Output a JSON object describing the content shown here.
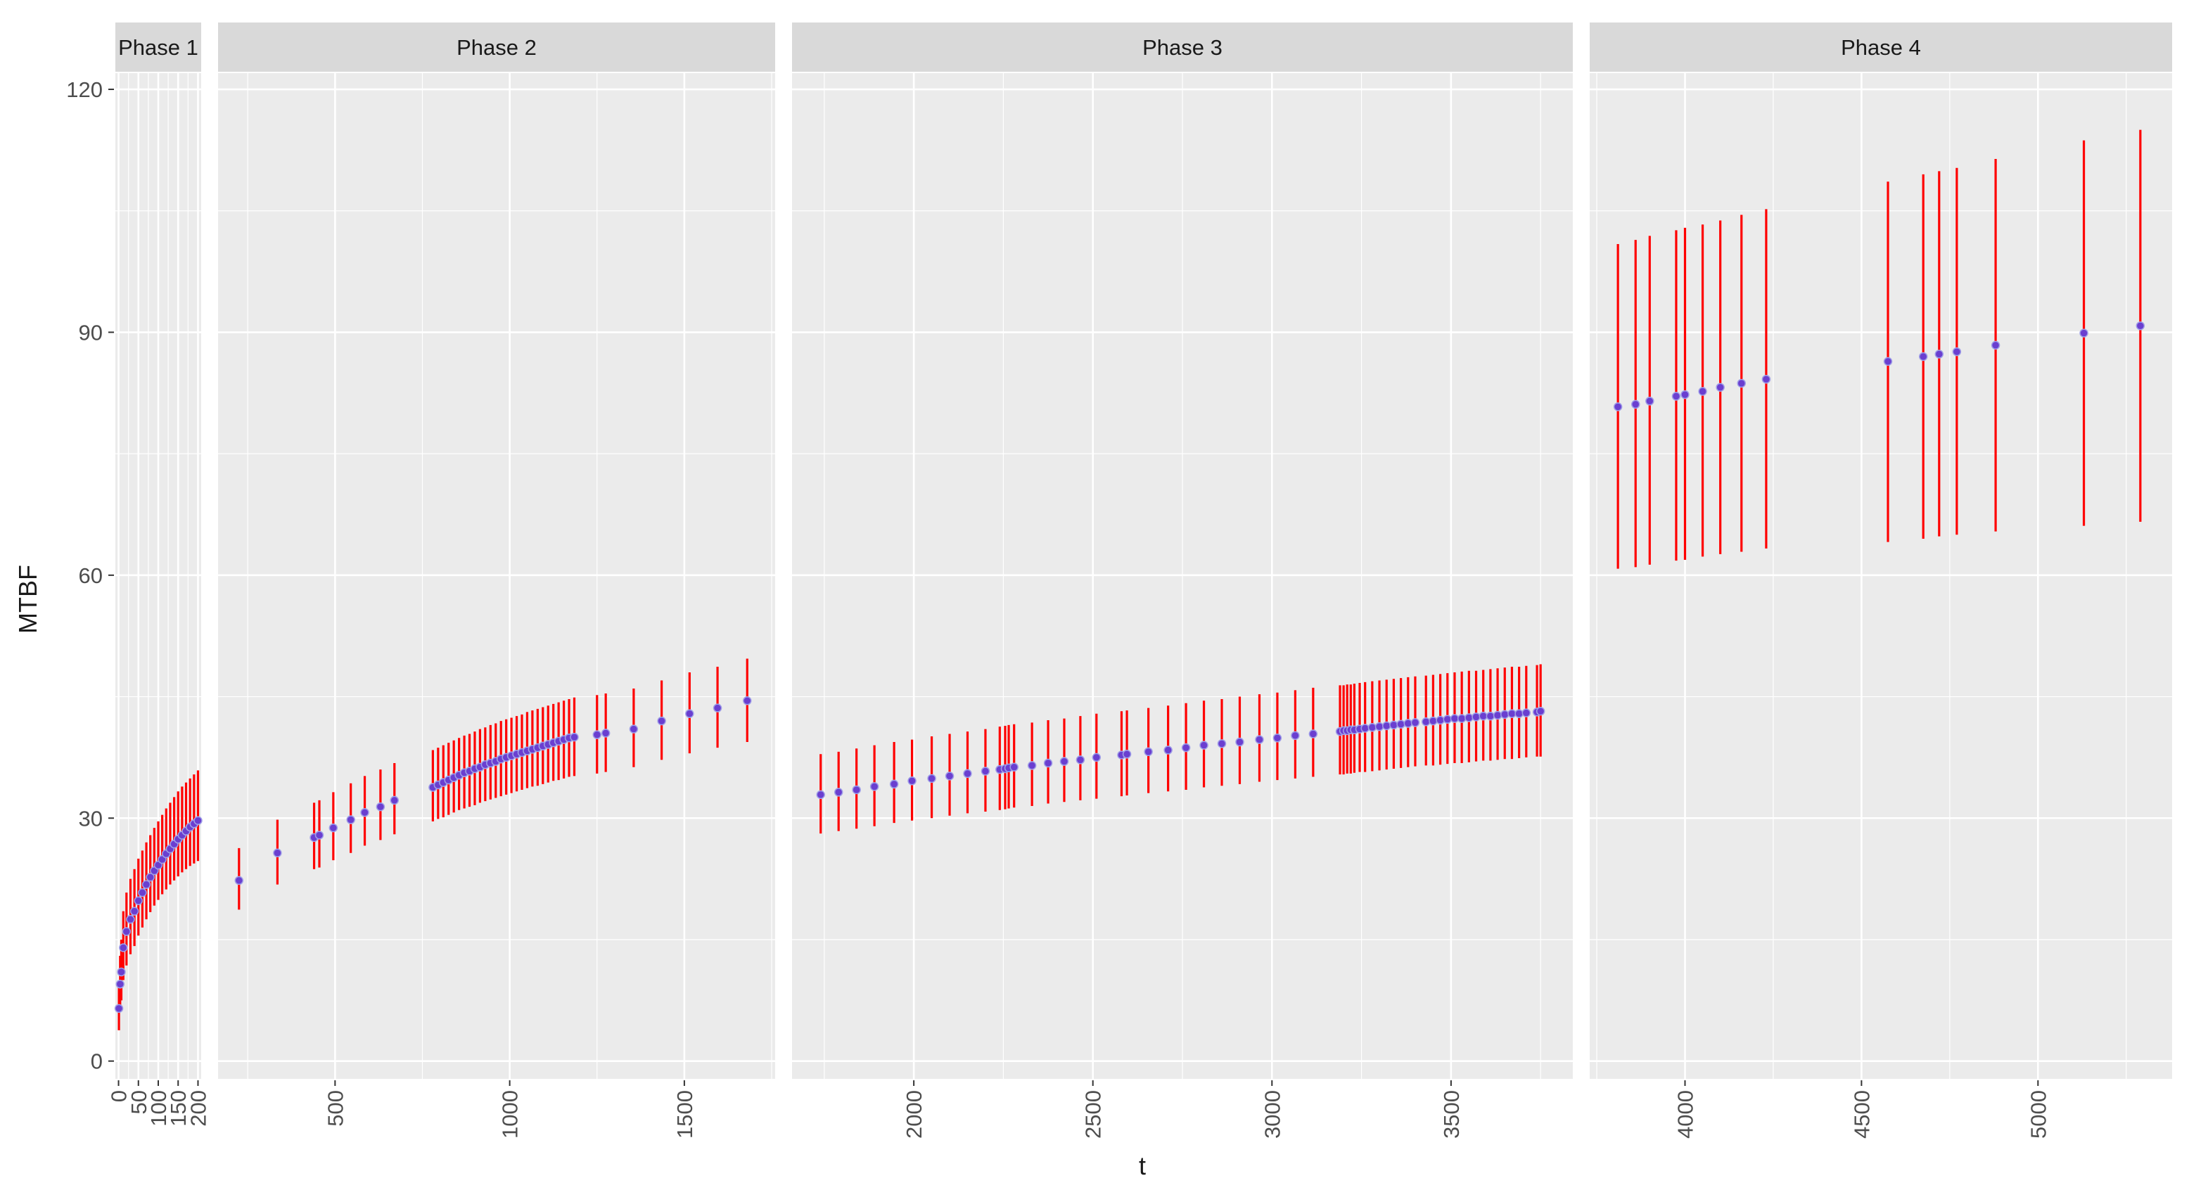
{
  "chart_data": {
    "type": "scatter",
    "subtype": "point-with-vertical-error-bars, faceted",
    "title": "",
    "xlabel": "t",
    "ylabel": "MTBF",
    "ylim": [
      -2.2,
      122
    ],
    "y_ticks": [
      0,
      30,
      60,
      90,
      120
    ],
    "y_tick_labels": [
      "0",
      "30",
      "60",
      "90",
      "120"
    ],
    "colors": {
      "panel_bg": "#ebebeb",
      "strip_bg": "#d9d9d9",
      "grid": "#ffffff",
      "point_fill": "#6a3fd0",
      "point_edge": "#a0a0e8",
      "error_bar": "#ff0000",
      "text": "#4d4d4d",
      "title_text": "#1a1a1a"
    },
    "facets": [
      {
        "name": "Phase 1",
        "xlim": [
          -8,
          208
        ],
        "x_ticks": [
          0,
          50,
          100,
          150,
          200
        ],
        "x_tick_labels": [
          "0",
          "50",
          "100",
          "150",
          "200"
        ],
        "x": [
          1,
          4,
          7,
          12,
          20,
          30,
          40,
          50,
          60,
          70,
          80,
          90,
          100,
          110,
          120,
          130,
          140,
          150,
          160,
          170,
          180,
          190,
          200
        ],
        "y": [
          6.5,
          9.5,
          11,
          14,
          16,
          17.5,
          18.5,
          19.8,
          20.8,
          21.8,
          22.7,
          23.5,
          24.2,
          24.9,
          25.6,
          26.2,
          26.8,
          27.4,
          27.9,
          28.4,
          28.9,
          29.3,
          29.7
        ],
        "lower": [
          3.8,
          6.2,
          7.5,
          10.0,
          11.8,
          13.2,
          14.2,
          15.5,
          16.5,
          17.5,
          18.4,
          19.2,
          19.9,
          20.6,
          21.2,
          21.8,
          22.3,
          22.8,
          23.3,
          23.7,
          24.1,
          24.4,
          24.7
        ],
        "upper": [
          9.5,
          13.0,
          15.0,
          18.5,
          20.8,
          22.5,
          23.7,
          25.0,
          26.0,
          27.0,
          27.9,
          28.8,
          29.6,
          30.4,
          31.2,
          31.9,
          32.6,
          33.3,
          33.9,
          34.4,
          34.9,
          35.4,
          35.9
        ]
      },
      {
        "name": "Phase 2",
        "xlim": [
          165,
          1760
        ],
        "x_ticks": [
          500,
          1000,
          1500
        ],
        "x_tick_labels": [
          "500",
          "1000",
          "1500"
        ],
        "x": [
          225,
          335,
          440,
          455,
          495,
          545,
          585,
          630,
          670,
          780,
          795,
          810,
          825,
          840,
          855,
          870,
          885,
          900,
          915,
          930,
          945,
          960,
          975,
          990,
          1005,
          1020,
          1035,
          1050,
          1065,
          1080,
          1095,
          1110,
          1125,
          1140,
          1155,
          1170,
          1185,
          1250,
          1275,
          1355,
          1435,
          1515,
          1595,
          1680
        ],
        "y": [
          22.3,
          25.7,
          27.6,
          27.9,
          28.8,
          29.8,
          30.7,
          31.4,
          32.2,
          33.8,
          34.1,
          34.4,
          34.7,
          35.0,
          35.3,
          35.6,
          35.8,
          36.1,
          36.3,
          36.6,
          36.8,
          37.0,
          37.3,
          37.5,
          37.7,
          37.9,
          38.1,
          38.3,
          38.5,
          38.7,
          38.9,
          39.1,
          39.3,
          39.5,
          39.7,
          39.9,
          40.0,
          40.3,
          40.5,
          41.0,
          42.0,
          42.9,
          43.6,
          44.5
        ],
        "lower": [
          18.7,
          21.8,
          23.7,
          23.9,
          24.8,
          25.7,
          26.6,
          27.3,
          28.0,
          29.6,
          29.9,
          30.1,
          30.4,
          30.7,
          31.0,
          31.2,
          31.4,
          31.6,
          31.9,
          32.1,
          32.3,
          32.5,
          32.7,
          32.9,
          33.1,
          33.3,
          33.5,
          33.7,
          33.9,
          34.0,
          34.2,
          34.4,
          34.6,
          34.7,
          34.9,
          35.1,
          35.2,
          35.5,
          35.7,
          36.3,
          37.2,
          38.0,
          38.7,
          39.4
        ],
        "upper": [
          26.3,
          29.8,
          31.9,
          32.2,
          33.2,
          34.3,
          35.2,
          36.0,
          36.8,
          38.4,
          38.7,
          39.0,
          39.3,
          39.6,
          39.9,
          40.2,
          40.4,
          40.7,
          41.0,
          41.2,
          41.5,
          41.7,
          42.0,
          42.2,
          42.4,
          42.6,
          42.8,
          43.1,
          43.3,
          43.5,
          43.7,
          43.9,
          44.1,
          44.3,
          44.5,
          44.7,
          44.9,
          45.2,
          45.4,
          46.0,
          47.0,
          48.0,
          48.7,
          49.7
        ]
      },
      {
        "name": "Phase 3",
        "xlim": [
          1660,
          3840
        ],
        "x_ticks": [
          2000,
          2500,
          3000,
          3500
        ],
        "x_tick_labels": [
          "2000",
          "2500",
          "3000",
          "3500"
        ],
        "x": [
          1740,
          1790,
          1840,
          1890,
          1945,
          1995,
          2050,
          2100,
          2150,
          2200,
          2240,
          2255,
          2265,
          2280,
          2330,
          2375,
          2420,
          2465,
          2510,
          2580,
          2595,
          2655,
          2710,
          2760,
          2810,
          2860,
          2910,
          2965,
          3015,
          3065,
          3115,
          3190,
          3200,
          3210,
          3220,
          3230,
          3245,
          3260,
          3280,
          3300,
          3320,
          3340,
          3360,
          3380,
          3400,
          3430,
          3450,
          3470,
          3490,
          3510,
          3530,
          3550,
          3570,
          3590,
          3610,
          3630,
          3650,
          3670,
          3690,
          3710,
          3740,
          3750
        ],
        "y": [
          32.9,
          33.2,
          33.5,
          33.9,
          34.2,
          34.6,
          34.9,
          35.2,
          35.5,
          35.8,
          36.0,
          36.1,
          36.2,
          36.3,
          36.5,
          36.8,
          37.0,
          37.2,
          37.5,
          37.8,
          37.9,
          38.2,
          38.4,
          38.7,
          39.0,
          39.2,
          39.4,
          39.7,
          39.9,
          40.2,
          40.4,
          40.7,
          40.8,
          40.8,
          40.9,
          40.9,
          41.0,
          41.1,
          41.2,
          41.3,
          41.4,
          41.5,
          41.6,
          41.7,
          41.8,
          41.9,
          42.0,
          42.1,
          42.2,
          42.3,
          42.3,
          42.4,
          42.5,
          42.6,
          42.6,
          42.7,
          42.8,
          42.9,
          42.9,
          43.0,
          43.1,
          43.2
        ],
        "lower": [
          28.1,
          28.4,
          28.7,
          29.0,
          29.4,
          29.7,
          30.0,
          30.3,
          30.6,
          30.8,
          31.0,
          31.1,
          31.2,
          31.3,
          31.5,
          31.8,
          32.0,
          32.2,
          32.4,
          32.7,
          32.8,
          33.1,
          33.3,
          33.5,
          33.8,
          34.0,
          34.2,
          34.5,
          34.7,
          34.9,
          35.1,
          35.4,
          35.4,
          35.5,
          35.5,
          35.6,
          35.7,
          35.7,
          35.8,
          35.9,
          36.0,
          36.1,
          36.2,
          36.3,
          36.4,
          36.5,
          36.5,
          36.6,
          36.7,
          36.8,
          36.8,
          36.9,
          37.0,
          37.1,
          37.1,
          37.2,
          37.3,
          37.3,
          37.4,
          37.5,
          37.6,
          37.6
        ],
        "upper": [
          37.9,
          38.2,
          38.6,
          39.0,
          39.4,
          39.7,
          40.1,
          40.4,
          40.7,
          41.0,
          41.3,
          41.4,
          41.5,
          41.6,
          41.8,
          42.1,
          42.3,
          42.6,
          42.9,
          43.2,
          43.3,
          43.6,
          43.9,
          44.2,
          44.5,
          44.7,
          45.0,
          45.3,
          45.5,
          45.8,
          46.1,
          46.4,
          46.4,
          46.5,
          46.5,
          46.6,
          46.7,
          46.8,
          46.9,
          47.0,
          47.1,
          47.2,
          47.3,
          47.4,
          47.5,
          47.6,
          47.7,
          47.8,
          47.9,
          48.0,
          48.1,
          48.2,
          48.2,
          48.3,
          48.4,
          48.5,
          48.6,
          48.7,
          48.7,
          48.8,
          48.9,
          49.0
        ]
      },
      {
        "name": "Phase 4",
        "xlim": [
          3730,
          5380
        ],
        "x_ticks": [
          4000,
          4500,
          5000
        ],
        "x_tick_labels": [
          "4000",
          "4500",
          "5000"
        ],
        "x": [
          3810,
          3860,
          3900,
          3975,
          4000,
          4050,
          4100,
          4160,
          4230,
          4575,
          4675,
          4720,
          4770,
          4880,
          5130,
          5290
        ],
        "y": [
          80.8,
          81.1,
          81.5,
          82.1,
          82.3,
          82.7,
          83.2,
          83.7,
          84.2,
          86.4,
          87.0,
          87.3,
          87.6,
          88.4,
          89.9,
          90.8
        ],
        "lower": [
          60.8,
          61.0,
          61.3,
          61.8,
          61.9,
          62.3,
          62.6,
          62.9,
          63.3,
          64.1,
          64.5,
          64.8,
          65.0,
          65.4,
          66.1,
          66.6
        ],
        "upper": [
          100.9,
          101.4,
          101.9,
          102.6,
          102.9,
          103.3,
          103.8,
          104.5,
          105.2,
          108.6,
          109.5,
          109.9,
          110.3,
          111.4,
          113.7,
          115.0
        ]
      }
    ]
  }
}
